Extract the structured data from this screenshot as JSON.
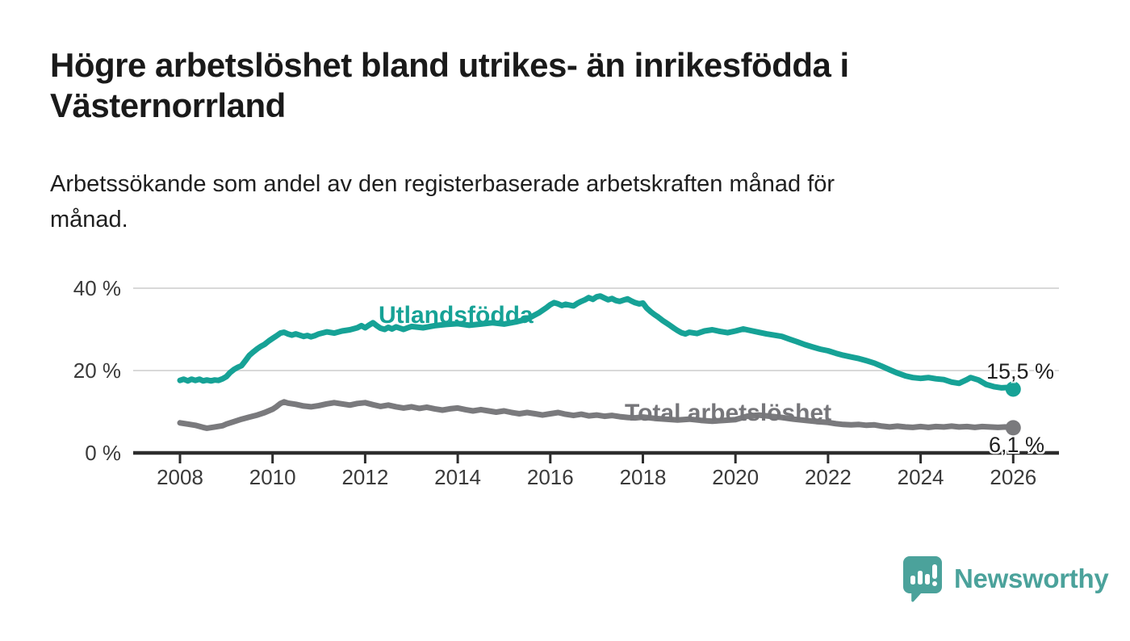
{
  "header": {
    "title": "Högre arbetslöshet bland utrikes- än inrikesfödda i Västernorrland",
    "title_lines": [
      "Högre arbetslöshet bland utrikes- än inrikesfödda i",
      "Västernorrland"
    ],
    "subtitle": "Arbetssökande som andel av den registerbaserade arbetskraften månad för månad.",
    "subtitle_lines": [
      "Arbetssökande som andel av den registerbaserade arbetskraften månad för",
      "månad."
    ],
    "text_color": "#1a1a1a"
  },
  "branding": {
    "logo_text": "Newsworthy",
    "logo_icon": "bar-chart-speech-bubble-icon",
    "logo_color": "#4ba29b"
  },
  "chart_data": {
    "type": "line",
    "title": "Högre arbetslöshet bland utrikes- än inrikesfödda i Västernorrland",
    "subtitle": "Arbetssökande som andel av den registerbaserade arbetskraften månad för månad.",
    "xlabel": "",
    "ylabel": "",
    "xlim": [
      2007.0,
      2027.0
    ],
    "ylim": [
      0,
      42
    ],
    "grid": "horizontal",
    "grid_color": "#d9d9d9",
    "axis_color": "#2d2d2d",
    "tick_label_color": "#3a3a3a",
    "x_ticks": [
      2008,
      2010,
      2012,
      2014,
      2016,
      2018,
      2020,
      2022,
      2024,
      2026
    ],
    "y_ticks": [
      {
        "value": 0,
        "label": "0 %"
      },
      {
        "value": 20,
        "label": "20 %"
      },
      {
        "value": 40,
        "label": "40 %"
      }
    ],
    "series": [
      {
        "name": "Utlandsfödda",
        "color": "#16a296",
        "end_value": 15.5,
        "end_label": "15,5 %",
        "points": [
          [
            2008,
            17.6
          ],
          [
            2008.08,
            17.9
          ],
          [
            2008.17,
            17.5
          ],
          [
            2008.25,
            17.9
          ],
          [
            2008.33,
            17.6
          ],
          [
            2008.42,
            17.9
          ],
          [
            2008.5,
            17.5
          ],
          [
            2008.58,
            17.7
          ],
          [
            2008.67,
            17.5
          ],
          [
            2008.75,
            17.7
          ],
          [
            2008.83,
            17.6
          ],
          [
            2008.92,
            18
          ],
          [
            2009,
            18.5
          ],
          [
            2009.08,
            19.5
          ],
          [
            2009.17,
            20.3
          ],
          [
            2009.25,
            20.8
          ],
          [
            2009.33,
            21.2
          ],
          [
            2009.42,
            22.5
          ],
          [
            2009.5,
            23.7
          ],
          [
            2009.58,
            24.5
          ],
          [
            2009.67,
            25.3
          ],
          [
            2009.75,
            25.9
          ],
          [
            2009.83,
            26.4
          ],
          [
            2009.92,
            27.2
          ],
          [
            2010,
            27.8
          ],
          [
            2010.08,
            28.4
          ],
          [
            2010.17,
            29.1
          ],
          [
            2010.25,
            29.3
          ],
          [
            2010.33,
            28.9
          ],
          [
            2010.42,
            28.6
          ],
          [
            2010.5,
            28.9
          ],
          [
            2010.58,
            28.6
          ],
          [
            2010.67,
            28.3
          ],
          [
            2010.75,
            28.5
          ],
          [
            2010.83,
            28.2
          ],
          [
            2010.92,
            28.5
          ],
          [
            2011,
            28.9
          ],
          [
            2011.17,
            29.4
          ],
          [
            2011.33,
            29.1
          ],
          [
            2011.5,
            29.6
          ],
          [
            2011.67,
            29.9
          ],
          [
            2011.83,
            30.4
          ],
          [
            2011.92,
            30.9
          ],
          [
            2012,
            30.4
          ],
          [
            2012.08,
            31
          ],
          [
            2012.17,
            31.6
          ],
          [
            2012.25,
            30.9
          ],
          [
            2012.33,
            30.3
          ],
          [
            2012.42,
            30
          ],
          [
            2012.5,
            30.5
          ],
          [
            2012.58,
            30.1
          ],
          [
            2012.67,
            30.6
          ],
          [
            2012.75,
            30.3
          ],
          [
            2012.83,
            30
          ],
          [
            2012.92,
            30.4
          ],
          [
            2013,
            30.7
          ],
          [
            2013.25,
            30.4
          ],
          [
            2013.5,
            30.9
          ],
          [
            2013.75,
            31.2
          ],
          [
            2014,
            31.4
          ],
          [
            2014.25,
            31
          ],
          [
            2014.5,
            31.3
          ],
          [
            2014.75,
            31.6
          ],
          [
            2015,
            31.3
          ],
          [
            2015.25,
            31.8
          ],
          [
            2015.5,
            32.5
          ],
          [
            2015.75,
            34
          ],
          [
            2015.92,
            35.3
          ],
          [
            2016,
            36
          ],
          [
            2016.08,
            36.5
          ],
          [
            2016.17,
            36.2
          ],
          [
            2016.25,
            35.8
          ],
          [
            2016.33,
            36.1
          ],
          [
            2016.5,
            35.7
          ],
          [
            2016.58,
            36.3
          ],
          [
            2016.67,
            36.8
          ],
          [
            2016.75,
            37.2
          ],
          [
            2016.83,
            37.7
          ],
          [
            2016.92,
            37.3
          ],
          [
            2017,
            37.9
          ],
          [
            2017.08,
            38.1
          ],
          [
            2017.17,
            37.6
          ],
          [
            2017.25,
            37.2
          ],
          [
            2017.33,
            37.5
          ],
          [
            2017.42,
            37
          ],
          [
            2017.5,
            36.8
          ],
          [
            2017.58,
            37.1
          ],
          [
            2017.67,
            37.4
          ],
          [
            2017.75,
            36.9
          ],
          [
            2017.83,
            36.5
          ],
          [
            2017.92,
            36.2
          ],
          [
            2018,
            36.4
          ],
          [
            2018.08,
            35.2
          ],
          [
            2018.17,
            34.3
          ],
          [
            2018.25,
            33.6
          ],
          [
            2018.33,
            33
          ],
          [
            2018.42,
            32.2
          ],
          [
            2018.5,
            31.6
          ],
          [
            2018.58,
            31
          ],
          [
            2018.67,
            30.3
          ],
          [
            2018.75,
            29.7
          ],
          [
            2018.83,
            29.2
          ],
          [
            2018.92,
            28.9
          ],
          [
            2019,
            29.3
          ],
          [
            2019.17,
            29
          ],
          [
            2019.33,
            29.6
          ],
          [
            2019.5,
            29.9
          ],
          [
            2019.67,
            29.5
          ],
          [
            2019.83,
            29.2
          ],
          [
            2020,
            29.6
          ],
          [
            2020.17,
            30.1
          ],
          [
            2020.33,
            29.7
          ],
          [
            2020.5,
            29.3
          ],
          [
            2020.67,
            28.9
          ],
          [
            2020.83,
            28.6
          ],
          [
            2021,
            28.3
          ],
          [
            2021.17,
            27.6
          ],
          [
            2021.33,
            27
          ],
          [
            2021.5,
            26.3
          ],
          [
            2021.67,
            25.7
          ],
          [
            2021.83,
            25.2
          ],
          [
            2022,
            24.8
          ],
          [
            2022.17,
            24.2
          ],
          [
            2022.33,
            23.7
          ],
          [
            2022.5,
            23.3
          ],
          [
            2022.67,
            22.9
          ],
          [
            2022.83,
            22.4
          ],
          [
            2023,
            21.8
          ],
          [
            2023.17,
            21
          ],
          [
            2023.33,
            20.2
          ],
          [
            2023.5,
            19.4
          ],
          [
            2023.67,
            18.7
          ],
          [
            2023.83,
            18.3
          ],
          [
            2024,
            18.1
          ],
          [
            2024.17,
            18.3
          ],
          [
            2024.33,
            18
          ],
          [
            2024.5,
            17.8
          ],
          [
            2024.67,
            17.2
          ],
          [
            2024.83,
            16.9
          ],
          [
            2025,
            17.8
          ],
          [
            2025.08,
            18.3
          ],
          [
            2025.25,
            17.7
          ],
          [
            2025.42,
            16.6
          ],
          [
            2025.58,
            16.1
          ],
          [
            2025.75,
            15.8
          ],
          [
            2025.92,
            15.9
          ],
          [
            2026,
            15.5
          ]
        ]
      },
      {
        "name": "Total arbetslöshet",
        "color": "#7a7a7d",
        "end_value": 6.1,
        "end_label": "6,1 %",
        "points": [
          [
            2008,
            7.3
          ],
          [
            2008.17,
            7
          ],
          [
            2008.33,
            6.7
          ],
          [
            2008.5,
            6.2
          ],
          [
            2008.58,
            6
          ],
          [
            2008.75,
            6.3
          ],
          [
            2008.92,
            6.6
          ],
          [
            2009,
            7
          ],
          [
            2009.17,
            7.6
          ],
          [
            2009.33,
            8.2
          ],
          [
            2009.5,
            8.7
          ],
          [
            2009.67,
            9.2
          ],
          [
            2009.83,
            9.8
          ],
          [
            2010,
            10.6
          ],
          [
            2010.08,
            11.2
          ],
          [
            2010.17,
            12
          ],
          [
            2010.25,
            12.4
          ],
          [
            2010.33,
            12.1
          ],
          [
            2010.5,
            11.8
          ],
          [
            2010.67,
            11.4
          ],
          [
            2010.83,
            11.2
          ],
          [
            2011,
            11.5
          ],
          [
            2011.17,
            11.9
          ],
          [
            2011.33,
            12.2
          ],
          [
            2011.5,
            11.9
          ],
          [
            2011.67,
            11.6
          ],
          [
            2011.83,
            12
          ],
          [
            2012,
            12.2
          ],
          [
            2012.17,
            11.7
          ],
          [
            2012.33,
            11.3
          ],
          [
            2012.5,
            11.6
          ],
          [
            2012.67,
            11.2
          ],
          [
            2012.83,
            10.9
          ],
          [
            2013,
            11.2
          ],
          [
            2013.17,
            10.8
          ],
          [
            2013.33,
            11.1
          ],
          [
            2013.5,
            10.7
          ],
          [
            2013.67,
            10.4
          ],
          [
            2013.83,
            10.7
          ],
          [
            2014,
            10.9
          ],
          [
            2014.17,
            10.5
          ],
          [
            2014.33,
            10.2
          ],
          [
            2014.5,
            10.5
          ],
          [
            2014.67,
            10.2
          ],
          [
            2014.83,
            9.9
          ],
          [
            2015,
            10.2
          ],
          [
            2015.17,
            9.8
          ],
          [
            2015.33,
            9.5
          ],
          [
            2015.5,
            9.8
          ],
          [
            2015.67,
            9.5
          ],
          [
            2015.83,
            9.2
          ],
          [
            2016,
            9.5
          ],
          [
            2016.17,
            9.8
          ],
          [
            2016.33,
            9.4
          ],
          [
            2016.5,
            9.1
          ],
          [
            2016.67,
            9.4
          ],
          [
            2016.83,
            9
          ],
          [
            2017,
            9.2
          ],
          [
            2017.17,
            8.9
          ],
          [
            2017.33,
            9.1
          ],
          [
            2017.5,
            8.8
          ],
          [
            2017.67,
            8.6
          ],
          [
            2017.83,
            8.5
          ],
          [
            2018,
            8.7
          ],
          [
            2018.25,
            8.4
          ],
          [
            2018.5,
            8.2
          ],
          [
            2018.75,
            8
          ],
          [
            2019,
            8.2
          ],
          [
            2019.25,
            7.9
          ],
          [
            2019.5,
            7.7
          ],
          [
            2019.75,
            7.9
          ],
          [
            2020,
            8.1
          ],
          [
            2020.25,
            8.9
          ],
          [
            2020.5,
            9.2
          ],
          [
            2020.75,
            8.9
          ],
          [
            2021,
            8.6
          ],
          [
            2021.25,
            8.2
          ],
          [
            2021.5,
            7.9
          ],
          [
            2021.75,
            7.6
          ],
          [
            2022,
            7.4
          ],
          [
            2022.17,
            7.1
          ],
          [
            2022.33,
            6.9
          ],
          [
            2022.5,
            6.8
          ],
          [
            2022.67,
            6.9
          ],
          [
            2022.83,
            6.7
          ],
          [
            2023,
            6.8
          ],
          [
            2023.17,
            6.5
          ],
          [
            2023.33,
            6.3
          ],
          [
            2023.5,
            6.5
          ],
          [
            2023.67,
            6.3
          ],
          [
            2023.83,
            6.2
          ],
          [
            2024,
            6.4
          ],
          [
            2024.17,
            6.2
          ],
          [
            2024.33,
            6.4
          ],
          [
            2024.5,
            6.3
          ],
          [
            2024.67,
            6.5
          ],
          [
            2024.83,
            6.3
          ],
          [
            2025,
            6.4
          ],
          [
            2025.17,
            6.2
          ],
          [
            2025.33,
            6.4
          ],
          [
            2025.5,
            6.3
          ],
          [
            2025.67,
            6.2
          ],
          [
            2025.83,
            6.3
          ],
          [
            2026,
            6.1
          ]
        ]
      }
    ]
  }
}
